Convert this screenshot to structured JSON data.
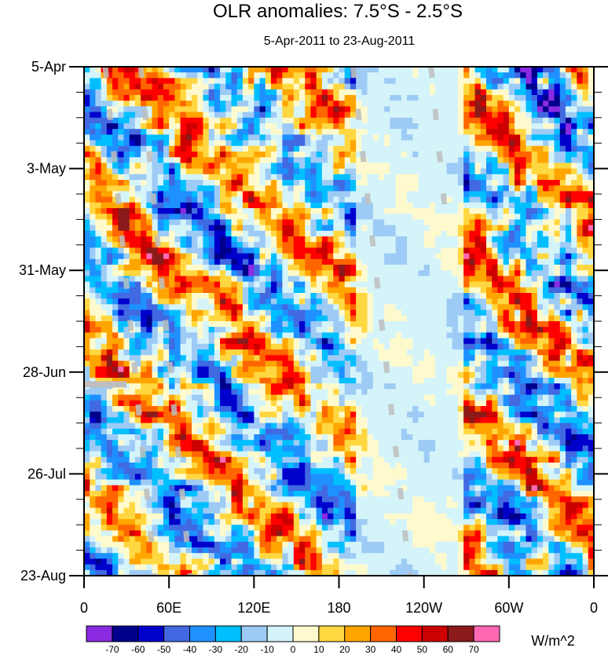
{
  "chart_data": {
    "type": "heatmap",
    "title": "OLR anomalies: 7.5°S - 2.5°S",
    "subtitle": "5-Apr-2011 to 23-Aug-2011",
    "x_tick_labels": [
      "0",
      "60E",
      "120E",
      "180",
      "120W",
      "60W",
      "0"
    ],
    "x_tick_values_deg_east": [
      0,
      60,
      120,
      180,
      240,
      300,
      360
    ],
    "y_tick_labels": [
      "5-Apr",
      "3-May",
      "31-May",
      "28-Jun",
      "26-Jul",
      "23-Aug"
    ],
    "y_tick_days_since_start": [
      0,
      28,
      56,
      84,
      112,
      140
    ],
    "xlim_deg_east": [
      0,
      360
    ],
    "ylim_days": [
      0,
      140
    ],
    "units": "W/m^2",
    "levels": [
      -70,
      -60,
      -50,
      -40,
      -30,
      -20,
      -10,
      0,
      10,
      20,
      30,
      40,
      50,
      60,
      70
    ],
    "level_labels": [
      "-70",
      "-60",
      "-50",
      "-40",
      "-30",
      "-20",
      "-10",
      "0",
      "10",
      "20",
      "30",
      "40",
      "50",
      "60",
      "70"
    ],
    "colors": [
      "#8a2be2",
      "#00008b",
      "#0000cd",
      "#4169e1",
      "#1e90ff",
      "#00bfff",
      "#9ecbf5",
      "#d4f4fa",
      "#fffacd",
      "#ffd740",
      "#ffa500",
      "#ff6600",
      "#ff0000",
      "#cc0000",
      "#8b1a1a",
      "#ff69b4"
    ],
    "missing_color": "#bebebe",
    "notes": "Hovmoller diagram; time axis runs downward from 5-Apr to 23-Aug; longitude 0 to 360 eastward."
  }
}
